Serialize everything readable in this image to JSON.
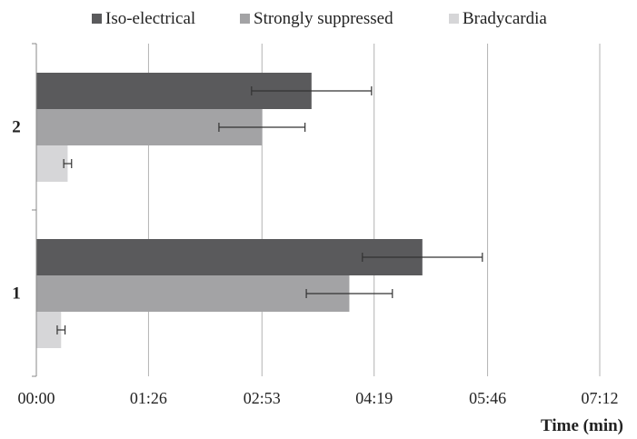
{
  "chart_data": {
    "type": "bar",
    "orientation": "horizontal",
    "categories": [
      "2",
      "1"
    ],
    "series": [
      {
        "name": "Iso-electrical",
        "color": "#5a5a5c",
        "values": [
          211,
          296
        ],
        "errors": [
          46,
          46
        ]
      },
      {
        "name": "Strongly suppressed",
        "color": "#a3a3a5",
        "values": [
          173,
          240
        ],
        "errors": [
          33,
          33
        ]
      },
      {
        "name": "Bradycardia",
        "color": "#d6d6d8",
        "values": [
          24,
          19
        ],
        "errors": [
          3,
          3
        ]
      }
    ],
    "value_unit": "seconds",
    "xlabel": "Time (min)",
    "ylabel": "",
    "xlim": [
      0,
      432
    ],
    "x_ticks": [
      0,
      86,
      173,
      259,
      346,
      432
    ],
    "x_tick_labels": [
      "00:00",
      "01:26",
      "02:53",
      "04:19",
      "05:46",
      "07:12"
    ],
    "grid": "vertical",
    "legend": "top"
  }
}
